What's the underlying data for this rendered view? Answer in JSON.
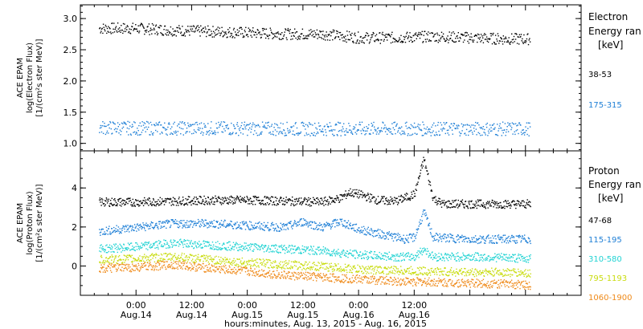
{
  "chart_data": [
    {
      "type": "scatter",
      "ylabel_lines": [
        "ACE EPAM",
        "log(Electron Flux)",
        "[1/(cm²s ster MeV)]"
      ],
      "yticks": [
        "3.0",
        "2.5",
        "2.0",
        "1.5",
        "1.0"
      ],
      "ylim": [
        0.88,
        3.22
      ],
      "xlim_hours": [
        -12,
        96
      ],
      "legend": {
        "title_lines": [
          "Electron",
          "Energy ran",
          "[keV]"
        ],
        "placement": "right"
      },
      "series": [
        {
          "name": "38-53",
          "color": "#000000",
          "base": 2.8,
          "points": [
            [
              -8,
              2.85
            ],
            [
              0,
              2.85
            ],
            [
              8,
              2.82
            ],
            [
              16,
              2.8
            ],
            [
              24,
              2.78
            ],
            [
              32,
              2.76
            ],
            [
              40,
              2.76
            ],
            [
              48,
              2.7
            ],
            [
              56,
              2.7
            ],
            [
              64,
              2.72
            ],
            [
              72,
              2.7
            ],
            [
              80,
              2.68
            ],
            [
              85,
              2.68
            ]
          ]
        },
        {
          "name": "175-315",
          "color": "#1e7fd6",
          "base": 1.25,
          "points": [
            [
              -8,
              1.26
            ],
            [
              0,
              1.25
            ],
            [
              16,
              1.25
            ],
            [
              32,
              1.24
            ],
            [
              48,
              1.24
            ],
            [
              64,
              1.24
            ],
            [
              80,
              1.24
            ],
            [
              85,
              1.24
            ]
          ]
        }
      ]
    },
    {
      "type": "scatter",
      "ylabel_lines": [
        "ACE EPAM",
        "log(Proton Flux)",
        "[1/(cm²s ster MeV)]"
      ],
      "yticks": [
        "4",
        "2",
        "0"
      ],
      "ylim": [
        -1.5,
        5.9
      ],
      "xlim_hours": [
        -12,
        96
      ],
      "legend": {
        "title_lines": [
          "Proton",
          "Energy ran",
          "[keV]"
        ],
        "placement": "right"
      },
      "series": [
        {
          "name": "47-68",
          "color": "#000000",
          "points": [
            [
              -8,
              3.3
            ],
            [
              0,
              3.3
            ],
            [
              8,
              3.35
            ],
            [
              16,
              3.4
            ],
            [
              24,
              3.4
            ],
            [
              32,
              3.35
            ],
            [
              40,
              3.3
            ],
            [
              44,
              3.5
            ],
            [
              46,
              3.8
            ],
            [
              48,
              3.7
            ],
            [
              52,
              3.4
            ],
            [
              56,
              3.35
            ],
            [
              60,
              3.7
            ],
            [
              62,
              5.5
            ],
            [
              64,
              3.5
            ],
            [
              66,
              3.2
            ],
            [
              72,
              3.2
            ],
            [
              80,
              3.2
            ],
            [
              85,
              3.2
            ]
          ]
        },
        {
          "name": "115-195",
          "color": "#1e7fd6",
          "points": [
            [
              -8,
              1.8
            ],
            [
              0,
              2.0
            ],
            [
              8,
              2.2
            ],
            [
              16,
              2.2
            ],
            [
              24,
              2.1
            ],
            [
              32,
              2.0
            ],
            [
              36,
              2.3
            ],
            [
              40,
              2.0
            ],
            [
              44,
              2.3
            ],
            [
              48,
              1.9
            ],
            [
              52,
              1.7
            ],
            [
              56,
              1.5
            ],
            [
              58,
              1.4
            ],
            [
              60,
              1.5
            ],
            [
              62,
              2.8
            ],
            [
              64,
              1.5
            ],
            [
              72,
              1.4
            ],
            [
              80,
              1.4
            ],
            [
              85,
              1.4
            ]
          ]
        },
        {
          "name": "310-580",
          "color": "#22d3d3",
          "points": [
            [
              -8,
              0.9
            ],
            [
              0,
              1.0
            ],
            [
              8,
              1.2
            ],
            [
              16,
              1.1
            ],
            [
              24,
              1.0
            ],
            [
              32,
              0.9
            ],
            [
              40,
              0.8
            ],
            [
              48,
              0.6
            ],
            [
              56,
              0.5
            ],
            [
              60,
              0.5
            ],
            [
              62,
              0.9
            ],
            [
              64,
              0.5
            ],
            [
              72,
              0.5
            ],
            [
              80,
              0.45
            ],
            [
              85,
              0.4
            ]
          ]
        },
        {
          "name": "795-1193",
          "color": "#c9dc10",
          "points": [
            [
              -8,
              0.35
            ],
            [
              0,
              0.4
            ],
            [
              8,
              0.5
            ],
            [
              16,
              0.35
            ],
            [
              24,
              0.2
            ],
            [
              32,
              0.1
            ],
            [
              40,
              0.0
            ],
            [
              48,
              -0.15
            ],
            [
              56,
              -0.2
            ],
            [
              64,
              -0.25
            ],
            [
              72,
              -0.3
            ],
            [
              80,
              -0.3
            ],
            [
              85,
              -0.35
            ]
          ]
        },
        {
          "name": "1060-1900",
          "color": "#ef8a1a",
          "points": [
            [
              -8,
              -0.1
            ],
            [
              0,
              -0.05
            ],
            [
              8,
              0.1
            ],
            [
              16,
              -0.1
            ],
            [
              24,
              -0.25
            ],
            [
              32,
              -0.45
            ],
            [
              40,
              -0.55
            ],
            [
              48,
              -0.65
            ],
            [
              56,
              -0.75
            ],
            [
              64,
              -0.8
            ],
            [
              72,
              -0.85
            ],
            [
              80,
              -0.9
            ],
            [
              85,
              -0.95
            ]
          ]
        }
      ]
    }
  ],
  "xaxis": {
    "ticks": [
      {
        "hour": 0,
        "label": "0:00",
        "date": "Aug.14"
      },
      {
        "hour": 12,
        "label": "12:00",
        "date": "Aug.14"
      },
      {
        "hour": 24,
        "label": "0:00",
        "date": "Aug.15"
      },
      {
        "hour": 36,
        "label": "12:00",
        "date": "Aug.15"
      },
      {
        "hour": 48,
        "label": "0:00",
        "date": "Aug.16"
      },
      {
        "hour": 60,
        "label": "12:00",
        "date": "Aug.16"
      }
    ],
    "xlabel": "hours:minutes, Aug. 13, 2015 - Aug. 16, 2015"
  }
}
